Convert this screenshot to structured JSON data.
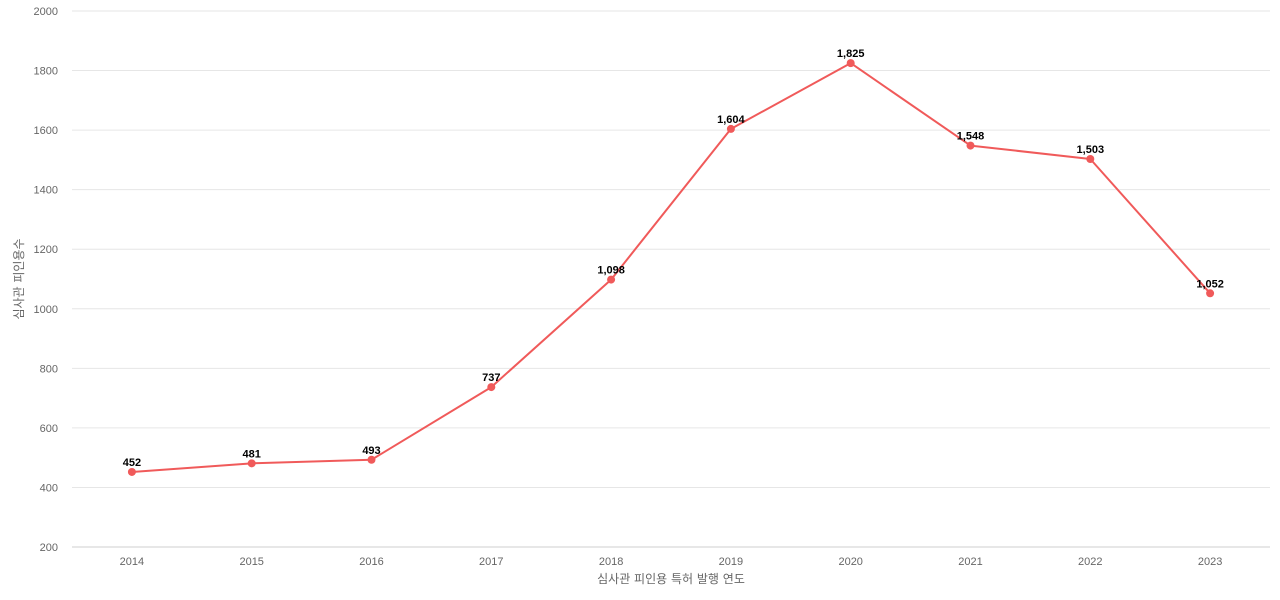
{
  "chart_data": {
    "type": "line",
    "title": "",
    "xlabel": "심사관 피인용 특허 발행 연도",
    "ylabel": "심사관 피인용수",
    "categories": [
      "2014",
      "2015",
      "2016",
      "2017",
      "2018",
      "2019",
      "2020",
      "2021",
      "2022",
      "2023"
    ],
    "series": [
      {
        "values": [
          452,
          481,
          493,
          737,
          1098,
          1604,
          1825,
          1548,
          1503,
          1052
        ],
        "labels": [
          "452",
          "481",
          "493",
          "737",
          "1,098",
          "1,604",
          "1,825",
          "1,548",
          "1,503",
          "1,052"
        ],
        "color": "#f05a5a"
      }
    ],
    "ylim": [
      200,
      2000
    ],
    "yticks": [
      200,
      400,
      600,
      800,
      1000,
      1200,
      1400,
      1600,
      1800,
      2000
    ],
    "grid": true,
    "legend": "none"
  }
}
